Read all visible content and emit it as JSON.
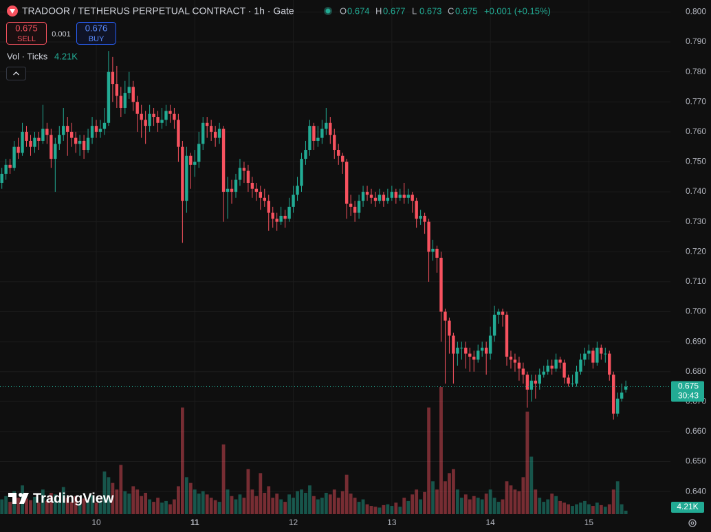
{
  "header": {
    "title": "TRADOOR / TETHERUS PERPETUAL CONTRACT · 1h · Gate",
    "ohlc_labels": [
      "O",
      "H",
      "L",
      "C"
    ],
    "change": "+0.001 (+0.15%)",
    "vol_label": "Vol · Ticks",
    "logo": "TradingView"
  },
  "trade_panel": {
    "bid": 0.675,
    "sell_label": "SELL",
    "spread": 0.001,
    "ask": 0.676,
    "buy_label": "BUY"
  },
  "chart_data": {
    "type": "candlestick",
    "up_color": "#22ab94",
    "down_color": "#f7525f",
    "ylim": [
      0.632,
      0.804
    ],
    "yticks": [
      {
        "value": 0.8,
        "label": "0.800"
      },
      {
        "value": 0.79,
        "label": "0.790"
      },
      {
        "value": 0.78,
        "label": "0.780"
      },
      {
        "value": 0.77,
        "label": "0.770"
      },
      {
        "value": 0.76,
        "label": "0.760"
      },
      {
        "value": 0.75,
        "label": "0.750"
      },
      {
        "value": 0.74,
        "label": "0.740"
      },
      {
        "value": 0.73,
        "label": "0.730"
      },
      {
        "value": 0.72,
        "label": "0.720"
      },
      {
        "value": 0.71,
        "label": "0.710"
      },
      {
        "value": 0.7,
        "label": "0.700"
      },
      {
        "value": 0.69,
        "label": "0.690"
      },
      {
        "value": 0.68,
        "label": "0.680"
      },
      {
        "value": 0.67,
        "label": "0.670"
      },
      {
        "value": 0.66,
        "label": "0.660"
      },
      {
        "value": 0.65,
        "label": "0.650"
      },
      {
        "value": 0.64,
        "label": "0.640"
      }
    ],
    "xticks": [
      {
        "value": 23,
        "label": "10"
      },
      {
        "value": 47,
        "label": "11"
      },
      {
        "value": 71,
        "label": "12"
      },
      {
        "value": 95,
        "label": "13"
      },
      {
        "value": 119,
        "label": "14"
      },
      {
        "value": 143,
        "label": "15"
      }
    ],
    "countdown": "30:43",
    "last_volume_label": "4.21K",
    "candles": [
      [
        0.743,
        0.748,
        0.741,
        0.746,
        18000
      ],
      [
        0.746,
        0.751,
        0.744,
        0.749,
        22000
      ],
      [
        0.749,
        0.751,
        0.746,
        0.748,
        15000
      ],
      [
        0.748,
        0.757,
        0.747,
        0.755,
        28000
      ],
      [
        0.755,
        0.758,
        0.751,
        0.753,
        20000
      ],
      [
        0.753,
        0.763,
        0.752,
        0.76,
        35000
      ],
      [
        0.76,
        0.762,
        0.755,
        0.757,
        19000
      ],
      [
        0.757,
        0.759,
        0.752,
        0.755,
        17000
      ],
      [
        0.755,
        0.76,
        0.753,
        0.758,
        21000
      ],
      [
        0.758,
        0.76,
        0.754,
        0.757,
        14000
      ],
      [
        0.757,
        0.769,
        0.756,
        0.761,
        30000
      ],
      [
        0.761,
        0.763,
        0.756,
        0.759,
        16000
      ],
      [
        0.759,
        0.761,
        0.748,
        0.751,
        26000
      ],
      [
        0.751,
        0.758,
        0.74,
        0.756,
        24000
      ],
      [
        0.756,
        0.762,
        0.754,
        0.759,
        18000
      ],
      [
        0.759,
        0.768,
        0.757,
        0.762,
        33000
      ],
      [
        0.762,
        0.765,
        0.752,
        0.76,
        20000
      ],
      [
        0.76,
        0.763,
        0.755,
        0.758,
        15000
      ],
      [
        0.758,
        0.76,
        0.753,
        0.756,
        22000
      ],
      [
        0.756,
        0.759,
        0.752,
        0.757,
        13000
      ],
      [
        0.757,
        0.759,
        0.751,
        0.754,
        19000
      ],
      [
        0.754,
        0.761,
        0.753,
        0.758,
        17000
      ],
      [
        0.758,
        0.765,
        0.756,
        0.762,
        23000
      ],
      [
        0.762,
        0.764,
        0.758,
        0.76,
        14000
      ],
      [
        0.76,
        0.764,
        0.758,
        0.761,
        16000
      ],
      [
        0.761,
        0.768,
        0.759,
        0.763,
        52000
      ],
      [
        0.763,
        0.787,
        0.762,
        0.78,
        45000
      ],
      [
        0.78,
        0.785,
        0.77,
        0.776,
        38000
      ],
      [
        0.776,
        0.782,
        0.768,
        0.772,
        30000
      ],
      [
        0.772,
        0.775,
        0.765,
        0.768,
        60000
      ],
      [
        0.768,
        0.777,
        0.766,
        0.773,
        28000
      ],
      [
        0.773,
        0.78,
        0.771,
        0.775,
        25000
      ],
      [
        0.775,
        0.777,
        0.767,
        0.77,
        34000
      ],
      [
        0.77,
        0.772,
        0.76,
        0.766,
        30000
      ],
      [
        0.766,
        0.769,
        0.758,
        0.764,
        22000
      ],
      [
        0.764,
        0.767,
        0.756,
        0.762,
        26000
      ],
      [
        0.762,
        0.769,
        0.76,
        0.766,
        18000
      ],
      [
        0.766,
        0.768,
        0.762,
        0.765,
        15000
      ],
      [
        0.765,
        0.767,
        0.76,
        0.763,
        20000
      ],
      [
        0.763,
        0.768,
        0.761,
        0.764,
        14000
      ],
      [
        0.764,
        0.769,
        0.762,
        0.767,
        16000
      ],
      [
        0.767,
        0.769,
        0.763,
        0.766,
        12000
      ],
      [
        0.766,
        0.768,
        0.761,
        0.764,
        18000
      ],
      [
        0.764,
        0.766,
        0.75,
        0.755,
        34000
      ],
      [
        0.755,
        0.757,
        0.723,
        0.737,
        130000
      ],
      [
        0.737,
        0.755,
        0.733,
        0.752,
        45000
      ],
      [
        0.752,
        0.753,
        0.741,
        0.749,
        38000
      ],
      [
        0.749,
        0.754,
        0.745,
        0.75,
        30000
      ],
      [
        0.75,
        0.76,
        0.748,
        0.756,
        25000
      ],
      [
        0.756,
        0.765,
        0.754,
        0.763,
        28000
      ],
      [
        0.763,
        0.765,
        0.758,
        0.762,
        24000
      ],
      [
        0.762,
        0.764,
        0.757,
        0.76,
        20000
      ],
      [
        0.76,
        0.762,
        0.755,
        0.758,
        17000
      ],
      [
        0.758,
        0.763,
        0.756,
        0.761,
        15000
      ],
      [
        0.761,
        0.762,
        0.73,
        0.74,
        85000
      ],
      [
        0.74,
        0.745,
        0.731,
        0.741,
        30000
      ],
      [
        0.741,
        0.744,
        0.736,
        0.74,
        22000
      ],
      [
        0.74,
        0.746,
        0.738,
        0.744,
        18000
      ],
      [
        0.744,
        0.751,
        0.742,
        0.748,
        24000
      ],
      [
        0.748,
        0.75,
        0.743,
        0.747,
        20000
      ],
      [
        0.747,
        0.749,
        0.74,
        0.743,
        55000
      ],
      [
        0.743,
        0.745,
        0.738,
        0.741,
        30000
      ],
      [
        0.741,
        0.743,
        0.737,
        0.74,
        22000
      ],
      [
        0.74,
        0.742,
        0.734,
        0.738,
        50000
      ],
      [
        0.738,
        0.741,
        0.735,
        0.737,
        26000
      ],
      [
        0.737,
        0.739,
        0.727,
        0.733,
        34000
      ],
      [
        0.733,
        0.735,
        0.728,
        0.731,
        20000
      ],
      [
        0.731,
        0.733,
        0.727,
        0.73,
        25000
      ],
      [
        0.73,
        0.735,
        0.729,
        0.732,
        18000
      ],
      [
        0.732,
        0.734,
        0.728,
        0.731,
        15000
      ],
      [
        0.731,
        0.738,
        0.73,
        0.735,
        24000
      ],
      [
        0.735,
        0.742,
        0.733,
        0.739,
        20000
      ],
      [
        0.739,
        0.745,
        0.737,
        0.742,
        28000
      ],
      [
        0.742,
        0.753,
        0.74,
        0.751,
        30000
      ],
      [
        0.751,
        0.757,
        0.749,
        0.754,
        26000
      ],
      [
        0.754,
        0.764,
        0.752,
        0.762,
        35000
      ],
      [
        0.762,
        0.763,
        0.754,
        0.757,
        22000
      ],
      [
        0.757,
        0.762,
        0.755,
        0.758,
        18000
      ],
      [
        0.758,
        0.764,
        0.756,
        0.761,
        20000
      ],
      [
        0.761,
        0.768,
        0.759,
        0.763,
        26000
      ],
      [
        0.763,
        0.765,
        0.756,
        0.759,
        24000
      ],
      [
        0.759,
        0.761,
        0.751,
        0.754,
        30000
      ],
      [
        0.754,
        0.756,
        0.749,
        0.752,
        20000
      ],
      [
        0.752,
        0.753,
        0.746,
        0.75,
        28000
      ],
      [
        0.75,
        0.751,
        0.731,
        0.736,
        48000
      ],
      [
        0.736,
        0.739,
        0.732,
        0.735,
        25000
      ],
      [
        0.735,
        0.737,
        0.73,
        0.733,
        20000
      ],
      [
        0.733,
        0.739,
        0.731,
        0.737,
        15000
      ],
      [
        0.737,
        0.742,
        0.735,
        0.74,
        18000
      ],
      [
        0.74,
        0.742,
        0.737,
        0.739,
        12000
      ],
      [
        0.739,
        0.741,
        0.736,
        0.738,
        10000
      ],
      [
        0.738,
        0.74,
        0.735,
        0.737,
        9000
      ],
      [
        0.737,
        0.741,
        0.736,
        0.739,
        8000
      ],
      [
        0.739,
        0.74,
        0.735,
        0.737,
        11000
      ],
      [
        0.737,
        0.741,
        0.736,
        0.738,
        12000
      ],
      [
        0.738,
        0.742,
        0.737,
        0.74,
        10000
      ],
      [
        0.74,
        0.741,
        0.736,
        0.738,
        14000
      ],
      [
        0.738,
        0.741,
        0.737,
        0.739,
        9000
      ],
      [
        0.739,
        0.743,
        0.736,
        0.738,
        20000
      ],
      [
        0.738,
        0.741,
        0.736,
        0.739,
        16000
      ],
      [
        0.739,
        0.74,
        0.733,
        0.737,
        24000
      ],
      [
        0.737,
        0.738,
        0.728,
        0.731,
        30000
      ],
      [
        0.731,
        0.734,
        0.729,
        0.732,
        18000
      ],
      [
        0.732,
        0.733,
        0.726,
        0.73,
        27000
      ],
      [
        0.73,
        0.731,
        0.71,
        0.72,
        130000
      ],
      [
        0.72,
        0.724,
        0.717,
        0.721,
        40000
      ],
      [
        0.721,
        0.722,
        0.713,
        0.718,
        30000
      ],
      [
        0.718,
        0.72,
        0.69,
        0.7,
        155000
      ],
      [
        0.7,
        0.701,
        0.676,
        0.697,
        40000
      ],
      [
        0.697,
        0.698,
        0.686,
        0.692,
        50000
      ],
      [
        0.692,
        0.693,
        0.676,
        0.686,
        55000
      ],
      [
        0.686,
        0.69,
        0.682,
        0.688,
        30000
      ],
      [
        0.688,
        0.69,
        0.684,
        0.688,
        20000
      ],
      [
        0.688,
        0.69,
        0.681,
        0.686,
        24000
      ],
      [
        0.686,
        0.688,
        0.68,
        0.685,
        18000
      ],
      [
        0.685,
        0.687,
        0.68,
        0.684,
        22000
      ],
      [
        0.684,
        0.689,
        0.683,
        0.687,
        20000
      ],
      [
        0.687,
        0.69,
        0.685,
        0.688,
        18000
      ],
      [
        0.688,
        0.69,
        0.679,
        0.686,
        25000
      ],
      [
        0.686,
        0.695,
        0.684,
        0.692,
        30000
      ],
      [
        0.692,
        0.702,
        0.69,
        0.699,
        20000
      ],
      [
        0.699,
        0.701,
        0.696,
        0.7,
        15000
      ],
      [
        0.7,
        0.701,
        0.695,
        0.699,
        18000
      ],
      [
        0.699,
        0.7,
        0.682,
        0.685,
        40000
      ],
      [
        0.685,
        0.687,
        0.681,
        0.684,
        35000
      ],
      [
        0.684,
        0.686,
        0.68,
        0.683,
        30000
      ],
      [
        0.683,
        0.685,
        0.677,
        0.681,
        28000
      ],
      [
        0.681,
        0.683,
        0.676,
        0.679,
        45000
      ],
      [
        0.679,
        0.68,
        0.668,
        0.674,
        125000
      ],
      [
        0.674,
        0.679,
        0.67,
        0.677,
        70000
      ],
      [
        0.677,
        0.679,
        0.671,
        0.676,
        30000
      ],
      [
        0.676,
        0.681,
        0.674,
        0.679,
        20000
      ],
      [
        0.679,
        0.682,
        0.678,
        0.68,
        15000
      ],
      [
        0.68,
        0.684,
        0.679,
        0.682,
        18000
      ],
      [
        0.682,
        0.684,
        0.679,
        0.681,
        25000
      ],
      [
        0.681,
        0.686,
        0.68,
        0.684,
        22000
      ],
      [
        0.684,
        0.685,
        0.681,
        0.683,
        16000
      ],
      [
        0.683,
        0.684,
        0.676,
        0.678,
        14000
      ],
      [
        0.678,
        0.679,
        0.675,
        0.676,
        12000
      ],
      [
        0.676,
        0.679,
        0.675,
        0.676,
        10000
      ],
      [
        0.676,
        0.682,
        0.675,
        0.68,
        12000
      ],
      [
        0.68,
        0.686,
        0.679,
        0.684,
        14000
      ],
      [
        0.684,
        0.688,
        0.682,
        0.686,
        16000
      ],
      [
        0.686,
        0.689,
        0.684,
        0.687,
        12000
      ],
      [
        0.687,
        0.688,
        0.681,
        0.683,
        10000
      ],
      [
        0.683,
        0.69,
        0.682,
        0.688,
        14000
      ],
      [
        0.688,
        0.689,
        0.684,
        0.686,
        11000
      ],
      [
        0.686,
        0.688,
        0.683,
        0.686,
        9000
      ],
      [
        0.686,
        0.687,
        0.677,
        0.679,
        12000
      ],
      [
        0.679,
        0.68,
        0.664,
        0.666,
        30000
      ],
      [
        0.666,
        0.673,
        0.665,
        0.671,
        40000
      ],
      [
        0.671,
        0.676,
        0.67,
        0.673,
        12000
      ],
      [
        0.674,
        0.677,
        0.673,
        0.675,
        4210
      ]
    ]
  }
}
